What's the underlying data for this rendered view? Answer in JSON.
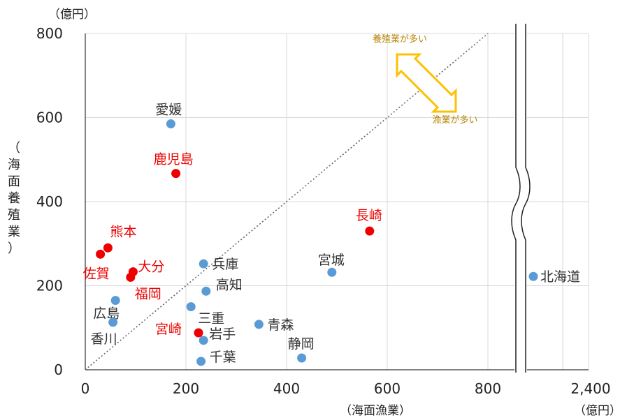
{
  "chart_data": {
    "type": "scatter",
    "xlabel": "（海面漁業）",
    "x_unit": "（億円）",
    "y_unit": "（億円）",
    "ylabel_chars": [
      "（",
      "海",
      "面",
      "養",
      "殖",
      "業",
      "）"
    ],
    "xlim": [
      0,
      800
    ],
    "ylim": [
      0,
      800
    ],
    "x_ticks": [
      "0",
      "200",
      "400",
      "600",
      "800"
    ],
    "x_tick_break": "2,400",
    "y_ticks": [
      "0",
      "200",
      "400",
      "600",
      "800"
    ],
    "grid": true,
    "axis_break": true,
    "diagonal_reference": true,
    "annotation": {
      "upper": "養殖業が多い",
      "lower": "漁業が多い"
    },
    "colors": {
      "blue": "#5b9bd5",
      "red": "#ee0000",
      "grid": "#d9d9d9",
      "arrow": "#ffc000",
      "annotation_text": "#b8860b"
    },
    "points": [
      {
        "label": "愛媛",
        "x": 170,
        "y": 585,
        "color": "blue"
      },
      {
        "label": "鹿児島",
        "x": 180,
        "y": 467,
        "color": "red"
      },
      {
        "label": "長崎",
        "x": 565,
        "y": 330,
        "color": "red"
      },
      {
        "label": "熊本",
        "x": 45,
        "y": 290,
        "color": "red"
      },
      {
        "label": "佐賀",
        "x": 30,
        "y": 275,
        "color": "red"
      },
      {
        "label": "大分",
        "x": 95,
        "y": 233,
        "color": "red"
      },
      {
        "label": "福岡",
        "x": 90,
        "y": 220,
        "color": "red"
      },
      {
        "label": "兵庫",
        "x": 235,
        "y": 252,
        "color": "blue"
      },
      {
        "label": "宮城",
        "x": 490,
        "y": 232,
        "color": "blue"
      },
      {
        "label": "高知",
        "x": 240,
        "y": 187,
        "color": "blue"
      },
      {
        "label": "北海道",
        "x": 2330,
        "y": 222,
        "color": "blue"
      },
      {
        "label": "広島",
        "x": 60,
        "y": 165,
        "color": "blue"
      },
      {
        "label": "三重",
        "x": 210,
        "y": 150,
        "color": "blue"
      },
      {
        "label": "香川",
        "x": 55,
        "y": 113,
        "color": "blue"
      },
      {
        "label": "青森",
        "x": 345,
        "y": 108,
        "color": "blue"
      },
      {
        "label": "宮崎",
        "x": 225,
        "y": 88,
        "color": "red"
      },
      {
        "label": "岩手",
        "x": 235,
        "y": 70,
        "color": "blue"
      },
      {
        "label": "静岡",
        "x": 430,
        "y": 28,
        "color": "blue"
      },
      {
        "label": "千葉",
        "x": 230,
        "y": 20,
        "color": "blue"
      }
    ]
  }
}
